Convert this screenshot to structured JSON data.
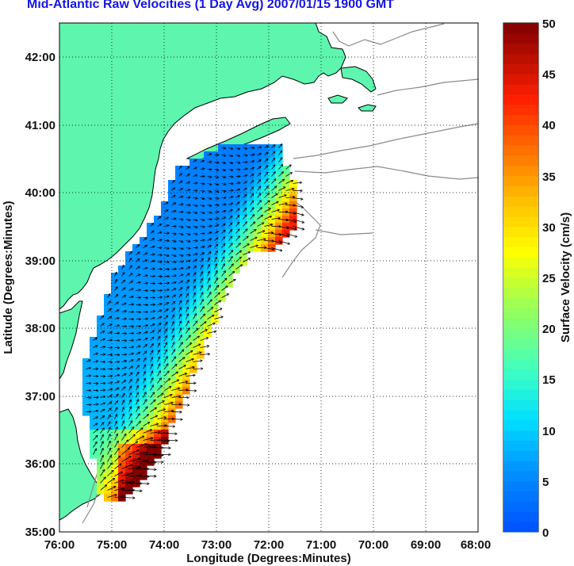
{
  "title": "Mid-Atlantic Raw Velocities (1 Day Avg) 2007/01/15 1900 GMT",
  "map": {
    "xlabel": "Longitude (Degrees:Minutes)",
    "ylabel": "Latitude (Degrees:Minutes)",
    "x_ticks": [
      "76:00",
      "75:00",
      "74:00",
      "73:00",
      "72:00",
      "71:00",
      "70:00",
      "69:00",
      "68:00"
    ],
    "y_ticks": [
      "42:00",
      "41:00",
      "40:00",
      "39:00",
      "38:00",
      "37:00",
      "36:00",
      "35:00"
    ],
    "lon_range": [
      -76,
      -68
    ],
    "lat_range": [
      35,
      42.5
    ],
    "grid": "dotted",
    "land_color": "#5ef5ae",
    "coast_color": "#000000",
    "bathymetry_color": "#8a8a8a"
  },
  "colorbar": {
    "label": "Surface Velocity (cm/s)",
    "ticks": [
      "50",
      "45",
      "40",
      "35",
      "30",
      "25",
      "20",
      "15",
      "10",
      "5",
      "0"
    ],
    "range": [
      0,
      50
    ],
    "colormap": "jet"
  }
}
